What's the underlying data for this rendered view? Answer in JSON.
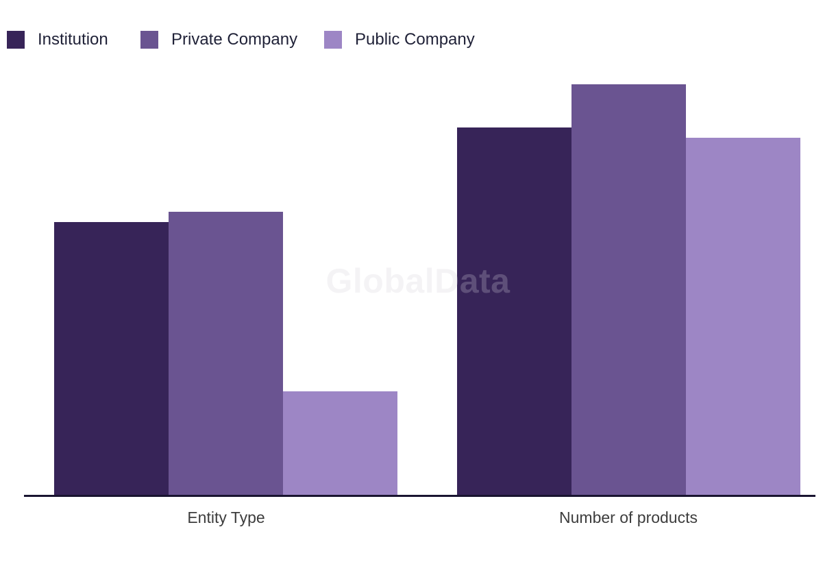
{
  "watermark": {
    "text": "GlobalData"
  },
  "legend": {
    "position": "top-left",
    "items": [
      {
        "label": "Institution",
        "color": "#372458"
      },
      {
        "label": "Private Company",
        "color": "#6a5491"
      },
      {
        "label": "Public Company",
        "color": "#9d86c5"
      }
    ]
  },
  "chart_data": {
    "type": "bar",
    "title": "",
    "xlabel": "",
    "ylabel": "",
    "categories": [
      "Entity Type",
      "Number of products"
    ],
    "series": [
      {
        "name": "Institution",
        "color": "#372458",
        "values": [
          398,
          536
        ]
      },
      {
        "name": "Private Company",
        "color": "#6a5491",
        "values": [
          413,
          599
        ]
      },
      {
        "name": "Public Company",
        "color": "#9d86c5",
        "values": [
          151,
          521
        ]
      }
    ],
    "value_units": "relative bar height in px (no numeric y-axis shown)",
    "y_axis_visible": false,
    "x_axis_line_visible": true,
    "grid": false,
    "legend_position": "top-left",
    "watermark": "GlobalData"
  },
  "colors": {
    "background": "#ffffff",
    "axis_line": "#191430",
    "legend_text": "#1f2137",
    "axis_label_text": "#3d3d3d",
    "watermark_text": "#d4d1db",
    "watermark_opacity": "0.25"
  }
}
